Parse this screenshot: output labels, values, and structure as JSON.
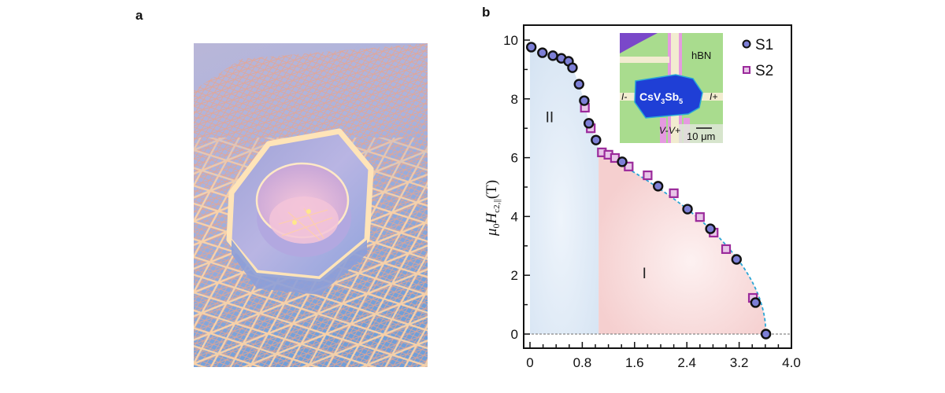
{
  "panels": {
    "a": {
      "label": "a",
      "description": "3D illustration: hexagonal ring with inner cylinder resting on a glowing kagome lattice"
    },
    "b": {
      "label": "b"
    }
  },
  "chart_data": {
    "type": "scatter",
    "title": "",
    "xlabel": "",
    "ylabel": "μ0Hc2,||(T)",
    "ylabel_parts": {
      "mu": "μ",
      "sub0": "0",
      "H": "H",
      "sub": "c2,||",
      "unit": "(T)"
    },
    "xlim": [
      0,
      4.0
    ],
    "ylim": [
      -0.4,
      10.5
    ],
    "xticks": [
      0,
      0.8,
      1.6,
      2.4,
      3.2,
      4.0
    ],
    "xtick_labels": [
      "0",
      "0.8",
      "1.6",
      "2.4",
      "3.2",
      "4.0"
    ],
    "xminor_step": 0.2,
    "yticks": [
      0,
      2,
      4,
      6,
      8,
      10
    ],
    "ytick_labels": [
      "0",
      "2",
      "4",
      "6",
      "8",
      "10"
    ],
    "yminor_step": 1,
    "grid": false,
    "legend_position": "top-right",
    "series": [
      {
        "name": "S1",
        "marker": "circle",
        "color": "#7d7fd6",
        "edge": "#111111",
        "x": [
          0.02,
          0.19,
          0.35,
          0.48,
          0.59,
          0.65,
          0.75,
          0.83,
          0.9,
          1.01,
          1.41,
          1.96,
          2.41,
          2.76,
          3.16,
          3.45,
          3.61
        ],
        "y": [
          9.76,
          9.57,
          9.47,
          9.38,
          9.28,
          9.06,
          8.5,
          7.94,
          7.17,
          6.6,
          5.86,
          5.03,
          4.25,
          3.58,
          2.54,
          1.07,
          0.0
        ]
      },
      {
        "name": "S2",
        "marker": "square",
        "color": "#e8c5e8",
        "edge": "#9b2a9b",
        "x": [
          0.84,
          0.93,
          1.1,
          1.2,
          1.3,
          1.51,
          1.8,
          2.2,
          2.6,
          2.81,
          3.0,
          3.41
        ],
        "y": [
          7.7,
          7.0,
          6.18,
          6.1,
          5.99,
          5.7,
          5.4,
          4.79,
          3.98,
          3.45,
          2.89,
          1.23
        ]
      }
    ],
    "fit_curve": {
      "style": "dashed",
      "color": "#2aa6d6",
      "formula": "y = 7.36 * sqrt(1 - x/3.61)",
      "x_range": [
        1.05,
        3.61
      ]
    },
    "baseline": {
      "y": 0,
      "style": "dashed",
      "color": "#888888"
    },
    "regions": [
      {
        "name": "II",
        "label": "II",
        "color": "#d9e6f4",
        "x_range": [
          0,
          1.05
        ],
        "label_pos": [
          0.3,
          7.2
        ]
      },
      {
        "name": "I",
        "label": "I",
        "color": "#f6d3d3",
        "x_range": [
          1.05,
          3.61
        ],
        "label_pos": [
          1.75,
          1.9
        ]
      }
    ],
    "inset": {
      "description": "optical micrograph of CsV3Sb5 flake device on hBN",
      "material_label": "CsV3Sb5",
      "material_parts": {
        "a": "CsV",
        "s1": "3",
        "b": "Sb",
        "s2": "5"
      },
      "substrate_label": "hBN",
      "electrode_labels": [
        "I-",
        "I+",
        "V-",
        "V+"
      ],
      "scale_bar": "10 μm"
    }
  }
}
